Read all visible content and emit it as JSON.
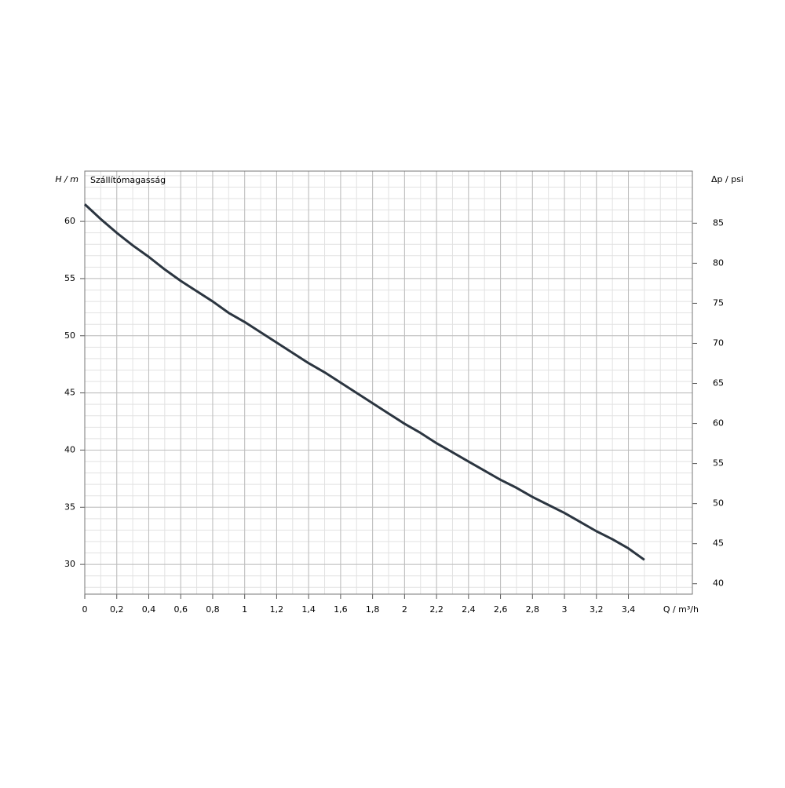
{
  "chart_data": {
    "type": "line",
    "title": "Szállítómagasság",
    "y_label": "H / m",
    "y2_label": "Δp / psi",
    "x_label": "Q / m³/h",
    "x": [
      0,
      0.1,
      0.2,
      0.3,
      0.4,
      0.5,
      0.6,
      0.7,
      0.8,
      0.9,
      1,
      1.1,
      1.2,
      1.3,
      1.4,
      1.5,
      1.6,
      1.7,
      1.8,
      1.9,
      2,
      2.1,
      2.2,
      2.3,
      2.4,
      2.5,
      2.6,
      2.7,
      2.8,
      2.9,
      3,
      3.1,
      3.2,
      3.3,
      3.4,
      3.5
    ],
    "series": [
      {
        "color": "#2b3540",
        "values": [
          61.5,
          60.2,
          59.0,
          57.9,
          56.9,
          55.8,
          54.8,
          53.9,
          53.0,
          52.0,
          51.2,
          50.3,
          49.4,
          48.5,
          47.6,
          46.8,
          45.9,
          45.0,
          44.1,
          43.2,
          42.3,
          41.5,
          40.6,
          39.8,
          39.0,
          38.2,
          37.4,
          36.7,
          35.9,
          35.2,
          34.5,
          33.7,
          32.9,
          32.2,
          31.4,
          30.4
        ]
      }
    ],
    "xlim": [
      0,
      3.8
    ],
    "xticks": [
      0,
      {
        "value": 0.2,
        "label": "0,2"
      },
      {
        "value": 0.4,
        "label": "0,4"
      },
      {
        "value": 0.6,
        "label": "0,6"
      },
      {
        "value": 0.8,
        "label": "0,8"
      },
      1,
      {
        "value": 1.2,
        "label": "1,2"
      },
      {
        "value": 1.4,
        "label": "1,4"
      },
      {
        "value": 1.6,
        "label": "1,6"
      },
      {
        "value": 1.8,
        "label": "1,8"
      },
      2,
      {
        "value": 2.2,
        "label": "2,2"
      },
      {
        "value": 2.4,
        "label": "2,4"
      },
      {
        "value": 2.6,
        "label": "2,6"
      },
      {
        "value": 2.8,
        "label": "2,8"
      },
      3,
      {
        "value": 3.2,
        "label": "3,2"
      },
      {
        "value": 3.4,
        "label": "3,4"
      }
    ],
    "ylim": [
      27.4,
      64.4
    ],
    "yticks": [
      30,
      35,
      40,
      45,
      50,
      55,
      60
    ],
    "y2lim": [
      38.7,
      91.5
    ],
    "y2ticks": [
      40,
      45,
      50,
      55,
      60,
      65,
      70,
      75,
      80,
      85
    ],
    "grid": true
  }
}
